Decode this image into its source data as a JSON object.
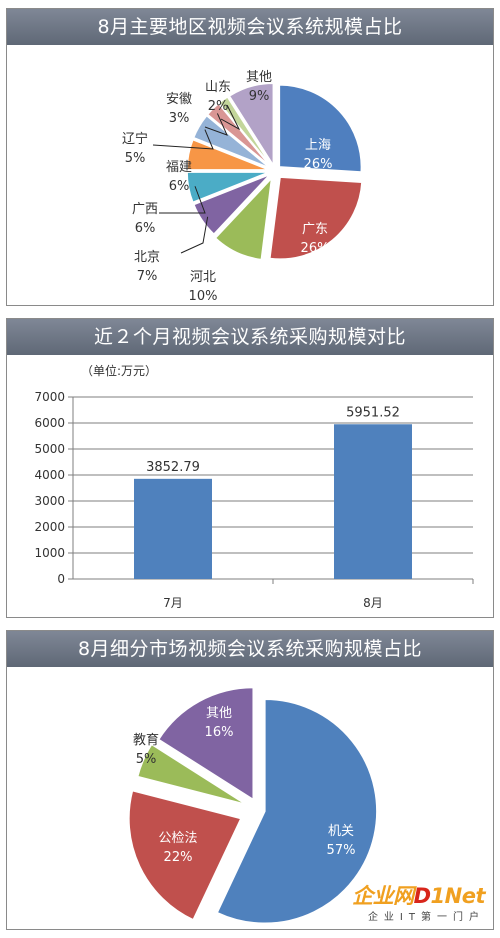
{
  "charts": [
    {
      "title": "8月主要地区视频会议系统规模占比",
      "chart_data": {
        "type": "pie",
        "slices": [
          {
            "label": "上海",
            "pct": "26%",
            "value": 26,
            "color": "#4f7fbf"
          },
          {
            "label": "广东",
            "pct": "26%",
            "value": 26,
            "color": "#c0504d"
          },
          {
            "label": "河北",
            "pct": "10%",
            "value": 10,
            "color": "#9bbb59"
          },
          {
            "label": "北京",
            "pct": "7%",
            "value": 7,
            "color": "#8064a2"
          },
          {
            "label": "广西",
            "pct": "6%",
            "value": 6,
            "color": "#4bacc6"
          },
          {
            "label": "福建",
            "pct": "6%",
            "value": 6,
            "color": "#f79646"
          },
          {
            "label": "辽宁",
            "pct": "5%",
            "value": 5,
            "color": "#95b3d7"
          },
          {
            "label": "安徽",
            "pct": "3%",
            "value": 3,
            "color": "#d99694"
          },
          {
            "label": "山东",
            "pct": "2%",
            "value": 2,
            "color": "#c3d69b"
          },
          {
            "label": "其他",
            "pct": "9%",
            "value": 9,
            "color": "#b2a2c7"
          }
        ]
      }
    },
    {
      "title": "近２个月视频会议系统采购规模对比",
      "chart_data": {
        "type": "bar",
        "unit_label": "（单位:万元）",
        "categories": [
          "7月",
          "8月"
        ],
        "values": [
          3852.79,
          5951.52
        ],
        "value_labels": [
          "3852.79",
          "5951.52"
        ],
        "ylim": [
          0,
          7000
        ],
        "yticks": [
          "0",
          "1000",
          "2000",
          "3000",
          "4000",
          "5000",
          "6000",
          "7000"
        ],
        "grid": true,
        "bar_color": "#4f81bd"
      }
    },
    {
      "title": "8月细分市场视频会议系统采购规模占比",
      "chart_data": {
        "type": "pie",
        "slices": [
          {
            "label": "机关",
            "pct": "57%",
            "value": 57,
            "color": "#4f81bd"
          },
          {
            "label": "公检法",
            "pct": "22%",
            "value": 22,
            "color": "#c0504d"
          },
          {
            "label": "教育",
            "pct": "5%",
            "value": 5,
            "color": "#9bbb59"
          },
          {
            "label": "其他",
            "pct": "16%",
            "value": 16,
            "color": "#8064a2"
          }
        ]
      }
    }
  ],
  "watermark": {
    "brand_a": "企业网",
    "brand_b": "D",
    "brand_c": "1Net",
    "sub": "企业IT第一门户"
  }
}
